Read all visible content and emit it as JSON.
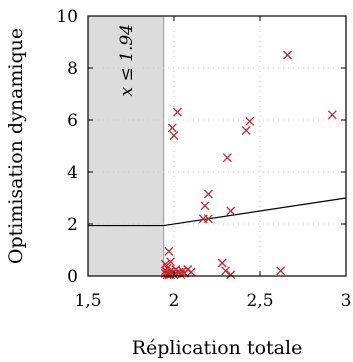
{
  "chart_data": {
    "type": "scatter",
    "xlabel": "Réplication totale",
    "ylabel": "Optimisation dynamique",
    "xlim": [
      1.5,
      3.0
    ],
    "ylim": [
      0,
      10
    ],
    "xticks": [
      1.5,
      2.0,
      2.5,
      3.0
    ],
    "xtick_labels": [
      "1,5",
      "2",
      "2,5",
      "3"
    ],
    "yticks": [
      0,
      2,
      4,
      6,
      8,
      10
    ],
    "ytick_labels": [
      "0",
      "2",
      "4",
      "6",
      "8",
      "10"
    ],
    "grid": true,
    "shaded_region": {
      "x_from": 1.5,
      "x_to": 1.94,
      "label": "x ≤ 1.94",
      "color": "#dcdcdc"
    },
    "line": {
      "points": [
        [
          1.5,
          1.94
        ],
        [
          1.94,
          1.94
        ],
        [
          3.0,
          3.0
        ]
      ],
      "color": "#000000"
    },
    "series": [
      {
        "marker": "x",
        "color": "#c0272d",
        "points": [
          [
            1.95,
            0.45
          ],
          [
            1.95,
            0.2
          ],
          [
            1.95,
            0.1
          ],
          [
            1.96,
            0.05
          ],
          [
            1.96,
            0.15
          ],
          [
            1.96,
            0.3
          ],
          [
            1.97,
            0.95
          ],
          [
            1.97,
            0.1
          ],
          [
            1.97,
            0.05
          ],
          [
            1.98,
            0.55
          ],
          [
            1.98,
            0.2
          ],
          [
            1.98,
            0.05
          ],
          [
            1.99,
            5.7
          ],
          [
            1.99,
            0.1
          ],
          [
            2.0,
            5.4
          ],
          [
            2.0,
            0.05
          ],
          [
            2.01,
            0.25
          ],
          [
            2.01,
            0.1
          ],
          [
            2.02,
            6.3
          ],
          [
            2.03,
            0.15
          ],
          [
            2.04,
            0.05
          ],
          [
            2.05,
            0.2
          ],
          [
            2.06,
            0.1
          ],
          [
            2.08,
            0.25
          ],
          [
            2.1,
            0.15
          ],
          [
            2.17,
            2.2
          ],
          [
            2.18,
            2.7
          ],
          [
            2.2,
            3.15
          ],
          [
            2.2,
            2.2
          ],
          [
            2.28,
            0.5
          ],
          [
            2.3,
            0.2
          ],
          [
            2.31,
            4.55
          ],
          [
            2.33,
            2.5
          ],
          [
            2.33,
            0.05
          ],
          [
            2.42,
            5.6
          ],
          [
            2.44,
            5.95
          ],
          [
            2.62,
            0.2
          ],
          [
            2.66,
            8.5
          ],
          [
            2.92,
            6.2
          ]
        ]
      }
    ]
  }
}
